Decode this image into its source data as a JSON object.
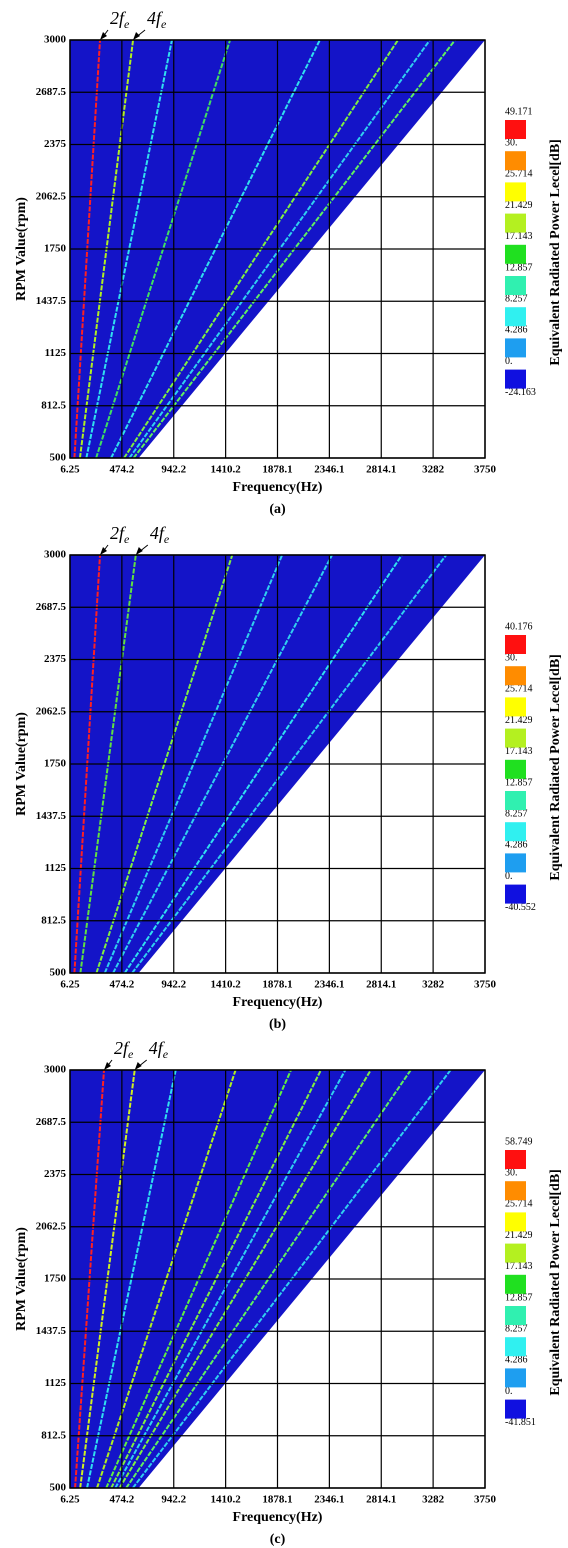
{
  "chart_data": [
    {
      "type": "waterfall",
      "x_label": "Frequency(Hz)",
      "y_label": "RPM Value(rpm)",
      "caption": "(a)",
      "annotations": [
        {
          "text": "2f",
          "sub": "e"
        },
        {
          "text": "4f",
          "sub": "e"
        }
      ],
      "xlim": [
        6.25,
        3750
      ],
      "xticks": [
        6.25,
        474.2,
        942.2,
        1410.2,
        1878.1,
        2346.1,
        2814.1,
        3282,
        3750
      ],
      "ylim": [
        500,
        3000
      ],
      "yticks": [
        500,
        812.5,
        1125,
        1437.5,
        1750,
        2062.5,
        2375,
        2687.5,
        3000
      ],
      "grid": true,
      "region": {
        "color": "#1414c8",
        "x": [
          6.25,
          625,
          3750,
          6.25
        ],
        "values": [
          500,
          500,
          3000,
          3000
        ]
      },
      "series": [
        {
          "color": "#ff2020",
          "x": [
            46,
            277
          ],
          "values": [
            500,
            3000
          ]
        },
        {
          "color": "#b0f020",
          "x": [
            96,
            575
          ],
          "values": [
            500,
            3000
          ]
        },
        {
          "color": "#30e0f0",
          "x": [
            154,
            926
          ],
          "values": [
            500,
            3000
          ]
        },
        {
          "color": "#40e060",
          "x": [
            242,
            1450
          ],
          "values": [
            500,
            3000
          ]
        },
        {
          "color": "#30e0f0",
          "x": [
            377,
            2260
          ],
          "values": [
            500,
            3000
          ]
        },
        {
          "color": "#80f040",
          "x": [
            494,
            2965
          ],
          "values": [
            500,
            3000
          ]
        },
        {
          "color": "#30d0f0",
          "x": [
            542,
            3253
          ],
          "values": [
            500,
            3000
          ]
        },
        {
          "color": "#60f060",
          "x": [
            580,
            3480
          ],
          "values": [
            500,
            3000
          ]
        }
      ],
      "colorbar": {
        "label": "Equivalent Radiated Power Lecel[dB]",
        "ticks": [
          49.171,
          {
            "value": 30,
            "label": "30."
          },
          25.714,
          21.429,
          17.143,
          12.857,
          8.257,
          4.286,
          {
            "value": 0,
            "label": "0."
          },
          -24.163
        ],
        "colors": [
          "#ff1010",
          "#ff8c00",
          "#ffff00",
          "#b4f020",
          "#20e020",
          "#30f0b0",
          "#30f0f0",
          "#1e9ef0",
          "#1010e0"
        ]
      }
    },
    {
      "type": "waterfall",
      "x_label": "Frequency(Hz)",
      "y_label": "RPM Value(rpm)",
      "caption": "(b)",
      "annotations": [
        {
          "text": "2f",
          "sub": "e"
        },
        {
          "text": "4f",
          "sub": "e"
        }
      ],
      "xlim": [
        6.25,
        3750
      ],
      "xticks": [
        6.25,
        474.2,
        942.2,
        1410.2,
        1878.1,
        2346.1,
        2814.1,
        3282,
        3750
      ],
      "ylim": [
        500,
        3000
      ],
      "yticks": [
        500,
        812.5,
        1125,
        1437.5,
        1750,
        2062.5,
        2375,
        2687.5,
        3000
      ],
      "grid": true,
      "region": {
        "color": "#1414c8",
        "x": [
          6.25,
          625,
          3750,
          6.25
        ],
        "values": [
          500,
          500,
          3000,
          3000
        ]
      },
      "series": [
        {
          "color": "#ff2020",
          "x": [
            46,
            277
          ],
          "values": [
            500,
            3000
          ]
        },
        {
          "color": "#60e040",
          "x": [
            100,
            600
          ],
          "values": [
            500,
            3000
          ]
        },
        {
          "color": "#80f040",
          "x": [
            245,
            1470
          ],
          "values": [
            500,
            3000
          ]
        },
        {
          "color": "#30d0f0",
          "x": [
            320,
            1920
          ],
          "values": [
            500,
            3000
          ]
        },
        {
          "color": "#30d0f0",
          "x": [
            395,
            2370
          ],
          "values": [
            500,
            3000
          ]
        },
        {
          "color": "#30e0f0",
          "x": [
            500,
            3000
          ],
          "values": [
            500,
            3000
          ]
        },
        {
          "color": "#30d0f0",
          "x": [
            567,
            3400
          ],
          "values": [
            500,
            3000
          ]
        }
      ],
      "colorbar": {
        "label": "Equivalent Radiated Power Lecel[dB]",
        "ticks": [
          40.176,
          {
            "value": 30,
            "label": "30."
          },
          25.714,
          21.429,
          17.143,
          12.857,
          8.257,
          4.286,
          {
            "value": 0,
            "label": "0."
          },
          -40.552
        ],
        "colors": [
          "#ff1010",
          "#ff8c00",
          "#ffff00",
          "#b4f020",
          "#20e020",
          "#30f0b0",
          "#30f0f0",
          "#1e9ef0",
          "#1010e0"
        ]
      }
    },
    {
      "type": "waterfall",
      "x_label": "Frequency(Hz)",
      "y_label": "RPM Value(rpm)",
      "caption": "(c)",
      "annotations": [
        {
          "text": "2f",
          "sub": "e"
        },
        {
          "text": "4f",
          "sub": "e"
        }
      ],
      "xlim": [
        6.25,
        3750
      ],
      "xticks": [
        6.25,
        474.2,
        942.2,
        1410.2,
        1878.1,
        2346.1,
        2814.1,
        3282,
        3750
      ],
      "ylim": [
        500,
        3000
      ],
      "yticks": [
        500,
        812.5,
        1125,
        1437.5,
        1750,
        2062.5,
        2375,
        2687.5,
        3000
      ],
      "grid": true,
      "region": {
        "color": "#1414c8",
        "x": [
          6.25,
          625,
          3750,
          6.25
        ],
        "values": [
          500,
          500,
          3000,
          3000
        ]
      },
      "series": [
        {
          "color": "#ff2020",
          "x": [
            52,
            313
          ],
          "values": [
            500,
            3000
          ]
        },
        {
          "color": "#d0f020",
          "x": [
            98,
            590
          ],
          "values": [
            500,
            3000
          ]
        },
        {
          "color": "#30e0f0",
          "x": [
            160,
            960
          ],
          "values": [
            500,
            3000
          ]
        },
        {
          "color": "#b0f020",
          "x": [
            250,
            1500
          ],
          "values": [
            500,
            3000
          ]
        },
        {
          "color": "#60f040",
          "x": [
            333,
            2000
          ],
          "values": [
            500,
            3000
          ]
        },
        {
          "color": "#80f040",
          "x": [
            378,
            2270
          ],
          "values": [
            500,
            3000
          ]
        },
        {
          "color": "#30d0f0",
          "x": [
            415,
            2490
          ],
          "values": [
            500,
            3000
          ]
        },
        {
          "color": "#80f040",
          "x": [
            453,
            2720
          ],
          "values": [
            500,
            3000
          ]
        },
        {
          "color": "#60f060",
          "x": [
            513,
            3080
          ],
          "values": [
            500,
            3000
          ]
        },
        {
          "color": "#30d0f0",
          "x": [
            573,
            3440
          ],
          "values": [
            500,
            3000
          ]
        }
      ],
      "colorbar": {
        "label": "Equivalent Radiated Power Lecel[dB]",
        "ticks": [
          58.749,
          {
            "value": 30,
            "label": "30."
          },
          25.714,
          21.429,
          17.143,
          12.857,
          8.257,
          4.286,
          {
            "value": 0,
            "label": "0."
          },
          -41.851
        ],
        "colors": [
          "#ff1010",
          "#ff8c00",
          "#ffff00",
          "#b4f020",
          "#20e020",
          "#30f0b0",
          "#30f0f0",
          "#1e9ef0",
          "#1010e0"
        ]
      }
    }
  ]
}
